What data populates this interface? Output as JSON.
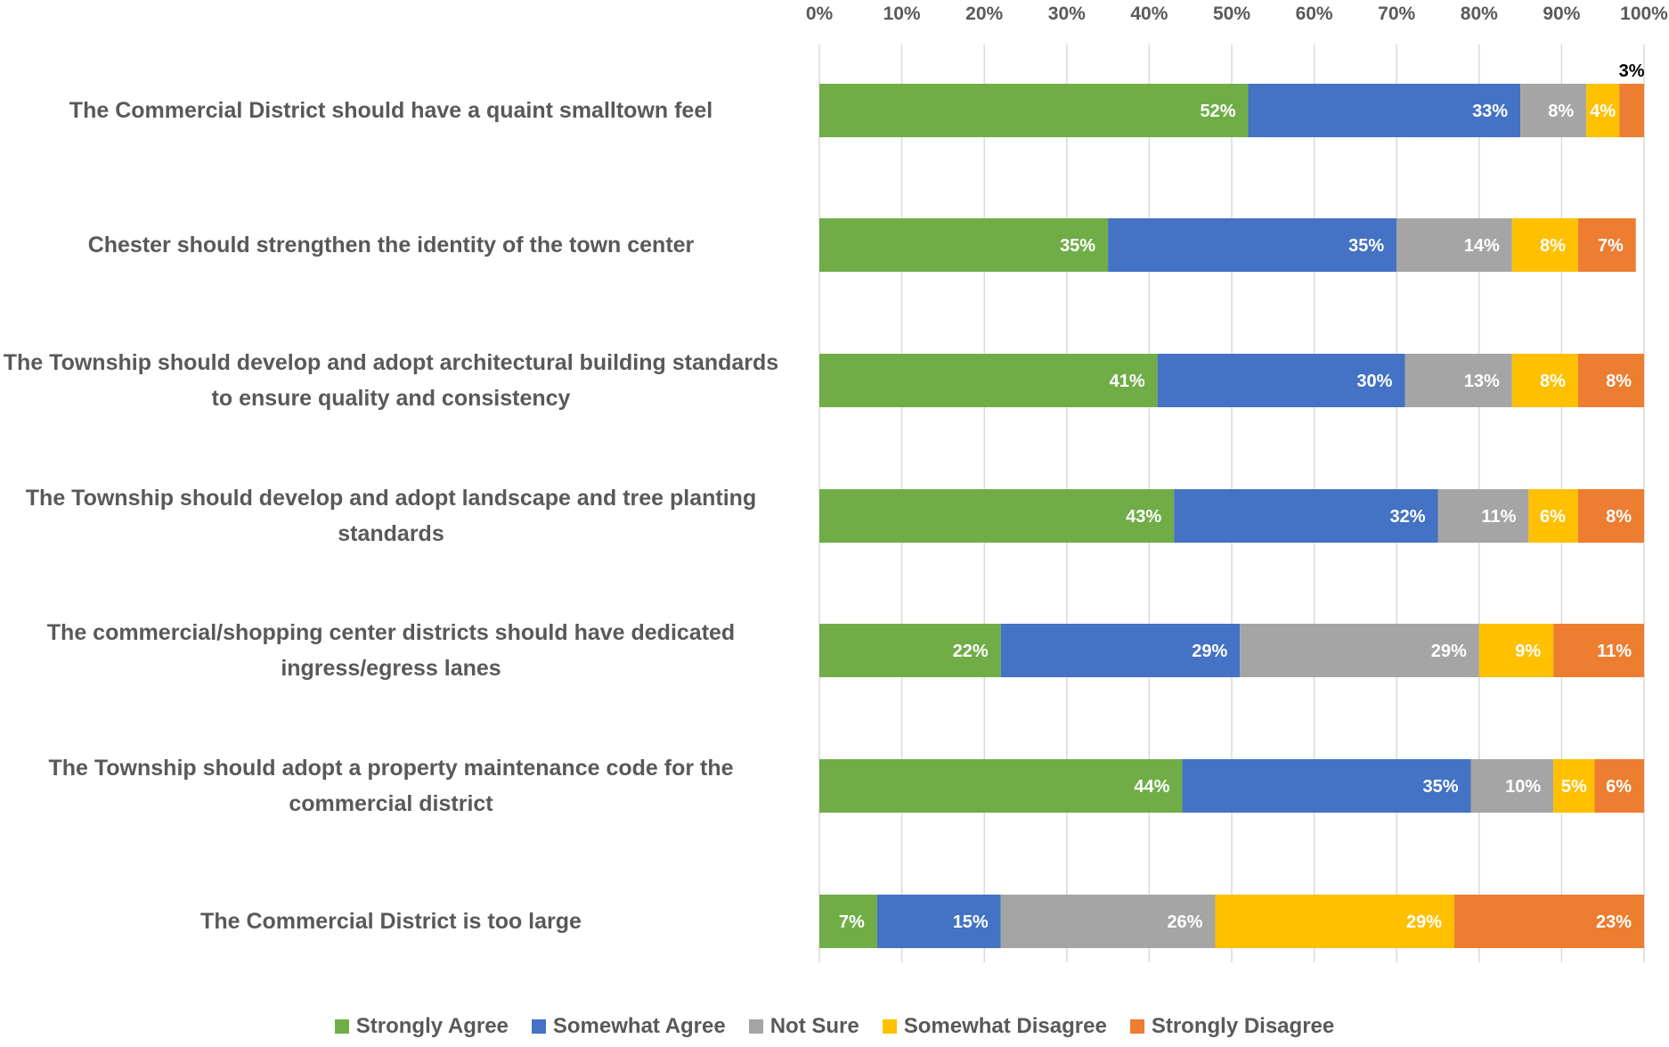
{
  "chart_data": {
    "type": "bar",
    "orientation": "horizontal",
    "stacked": "100%",
    "xlim": [
      0,
      100
    ],
    "x_ticks": [
      "0%",
      "10%",
      "20%",
      "30%",
      "40%",
      "50%",
      "60%",
      "70%",
      "80%",
      "90%",
      "100%"
    ],
    "grid": "vertical",
    "legend_position": "bottom",
    "categories": [
      "The Commercial District should have a quaint smalltown feel",
      "Chester should strengthen the identity of the town center",
      "The Township should develop and adopt architectural building standards to ensure quality and consistency",
      "The Township should develop and adopt landscape and tree planting standards",
      "The commercial/shopping center districts should have dedicated ingress/egress lanes",
      "The Township should adopt a property maintenance code for the commercial district",
      "The Commercial District is too large"
    ],
    "series": [
      {
        "name": "Strongly Agree",
        "color": "#70ad47",
        "values": [
          52,
          35,
          41,
          43,
          22,
          44,
          7
        ]
      },
      {
        "name": "Somewhat Agree",
        "color": "#4472c4",
        "values": [
          33,
          35,
          30,
          32,
          29,
          35,
          15
        ]
      },
      {
        "name": "Not Sure",
        "color": "#a5a5a5",
        "values": [
          8,
          14,
          13,
          11,
          29,
          10,
          26
        ]
      },
      {
        "name": "Somewhat Disagree",
        "color": "#ffc000",
        "values": [
          4,
          8,
          8,
          6,
          9,
          5,
          29
        ]
      },
      {
        "name": "Strongly Disagree",
        "color": "#ed7d31",
        "values": [
          3,
          7,
          8,
          8,
          11,
          6,
          23
        ]
      }
    ]
  }
}
